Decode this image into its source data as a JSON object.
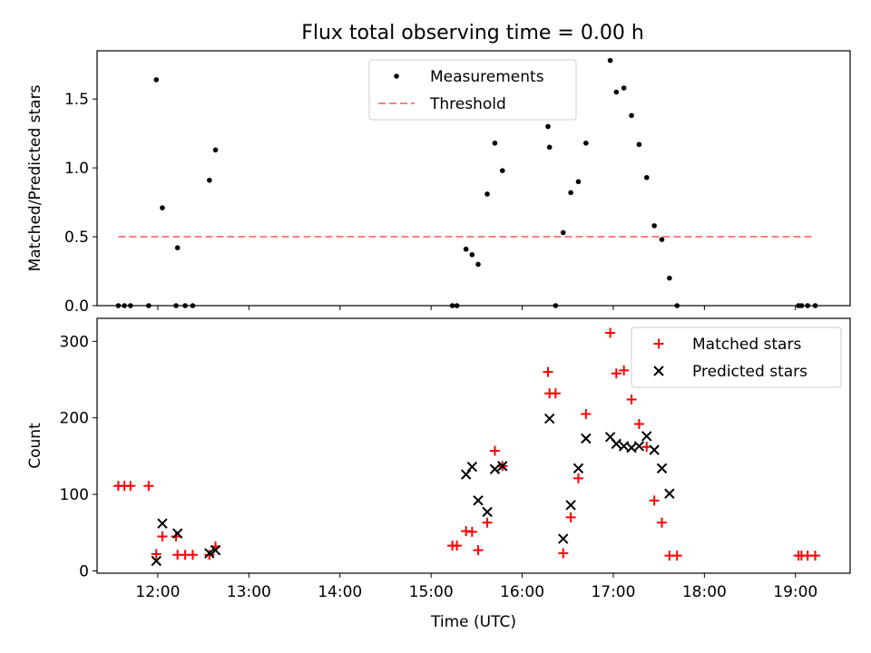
{
  "title": "Flux total observing time = 0.00 h",
  "chart_data": [
    {
      "type": "scatter",
      "title": "Flux total observing time = 0.00 h",
      "xlabel": "",
      "ylabel": "Matched/Predicted stars",
      "xlim": [
        "11:20",
        "19:36"
      ],
      "ylim": [
        0,
        1.85
      ],
      "yticks": [
        0.0,
        0.5,
        1.0,
        1.5
      ],
      "ytick_labels": [
        "0.0",
        "0.5",
        "1.0",
        "1.5"
      ],
      "legend_placement": "upper center",
      "legend": [
        "Measurements",
        "Threshold"
      ],
      "series": [
        {
          "name": "Measurements",
          "marker": "dot",
          "color": "#000000",
          "points": [
            [
              "11:34",
              0.0
            ],
            [
              "11:38",
              0.0
            ],
            [
              "11:42",
              0.0
            ],
            [
              "11:54",
              0.0
            ],
            [
              "11:59",
              1.64
            ],
            [
              "12:03",
              0.71
            ],
            [
              "12:12",
              0.0
            ],
            [
              "12:13",
              0.42
            ],
            [
              "12:18",
              0.0
            ],
            [
              "12:23",
              0.0
            ],
            [
              "12:34",
              0.91
            ],
            [
              "12:38",
              1.13
            ],
            [
              "15:14",
              0.0
            ],
            [
              "15:17",
              0.0
            ],
            [
              "15:23",
              0.41
            ],
            [
              "15:27",
              0.37
            ],
            [
              "15:31",
              0.3
            ],
            [
              "15:37",
              0.81
            ],
            [
              "15:42",
              1.18
            ],
            [
              "15:47",
              0.98
            ],
            [
              "16:17",
              1.3
            ],
            [
              "16:18",
              1.15
            ],
            [
              "16:22",
              0.0
            ],
            [
              "16:27",
              0.53
            ],
            [
              "16:32",
              0.82
            ],
            [
              "16:37",
              0.9
            ],
            [
              "16:42",
              1.18
            ],
            [
              "16:58",
              1.78
            ],
            [
              "17:02",
              1.55
            ],
            [
              "17:07",
              1.58
            ],
            [
              "17:12",
              1.38
            ],
            [
              "17:17",
              1.17
            ],
            [
              "17:22",
              0.93
            ],
            [
              "17:27",
              0.58
            ],
            [
              "17:32",
              0.48
            ],
            [
              "17:37",
              0.2
            ],
            [
              "17:42",
              0.0
            ],
            [
              "19:02",
              0.0
            ],
            [
              "19:04",
              0.0
            ],
            [
              "19:08",
              0.0
            ],
            [
              "19:13",
              0.0
            ]
          ]
        },
        {
          "name": "Threshold",
          "line_style": "dashed",
          "color": "#ff7f7f",
          "points": [
            [
              "11:34",
              0.5
            ],
            [
              "19:13",
              0.5
            ]
          ]
        }
      ]
    },
    {
      "type": "scatter",
      "title": "",
      "xlabel": "Time (UTC)",
      "ylabel": "Count",
      "xlim": [
        "11:20",
        "19:36"
      ],
      "ylim": [
        -3,
        330
      ],
      "yticks": [
        0,
        100,
        200,
        300
      ],
      "ytick_labels": [
        "0",
        "100",
        "200",
        "300"
      ],
      "xticks": [
        "12:00",
        "13:00",
        "14:00",
        "15:00",
        "16:00",
        "17:00",
        "18:00",
        "19:00"
      ],
      "legend_placement": "upper right",
      "legend": [
        "Matched stars",
        "Predicted stars"
      ],
      "series": [
        {
          "name": "Matched stars",
          "marker": "plus",
          "color": "#ff0000",
          "points": [
            [
              "11:34",
              111
            ],
            [
              "11:38",
              111
            ],
            [
              "11:42",
              111
            ],
            [
              "11:54",
              111
            ],
            [
              "11:59",
              22
            ],
            [
              "12:03",
              45
            ],
            [
              "12:12",
              45
            ],
            [
              "12:13",
              21
            ],
            [
              "12:18",
              21
            ],
            [
              "12:23",
              21
            ],
            [
              "12:34",
              21
            ],
            [
              "12:38",
              32
            ],
            [
              "15:14",
              33
            ],
            [
              "15:17",
              33
            ],
            [
              "15:23",
              52
            ],
            [
              "15:27",
              51
            ],
            [
              "15:31",
              27
            ],
            [
              "15:37",
              63
            ],
            [
              "15:42",
              157
            ],
            [
              "15:47",
              137
            ],
            [
              "16:17",
              260
            ],
            [
              "16:18",
              232
            ],
            [
              "16:22",
              232
            ],
            [
              "16:27",
              23
            ],
            [
              "16:32",
              70
            ],
            [
              "16:37",
              121
            ],
            [
              "16:42",
              205
            ],
            [
              "16:58",
              311
            ],
            [
              "17:02",
              258
            ],
            [
              "17:07",
              262
            ],
            [
              "17:12",
              224
            ],
            [
              "17:17",
              192
            ],
            [
              "17:22",
              162
            ],
            [
              "17:27",
              92
            ],
            [
              "17:32",
              63
            ],
            [
              "17:37",
              20
            ],
            [
              "17:42",
              20
            ],
            [
              "19:02",
              20
            ],
            [
              "19:04",
              20
            ],
            [
              "19:08",
              20
            ],
            [
              "19:13",
              20
            ]
          ]
        },
        {
          "name": "Predicted stars",
          "marker": "x",
          "color": "#000000",
          "points": [
            [
              "11:59",
              13
            ],
            [
              "12:03",
              62
            ],
            [
              "12:13",
              49
            ],
            [
              "12:34",
              23
            ],
            [
              "12:38",
              27
            ],
            [
              "15:23",
              126
            ],
            [
              "15:27",
              136
            ],
            [
              "15:31",
              92
            ],
            [
              "15:37",
              77
            ],
            [
              "15:42",
              133
            ],
            [
              "15:47",
              137
            ],
            [
              "16:18",
              199
            ],
            [
              "16:27",
              42
            ],
            [
              "16:32",
              86
            ],
            [
              "16:37",
              134
            ],
            [
              "16:42",
              173
            ],
            [
              "16:58",
              175
            ],
            [
              "17:02",
              166
            ],
            [
              "17:07",
              163
            ],
            [
              "17:12",
              161
            ],
            [
              "17:17",
              163
            ],
            [
              "17:22",
              176
            ],
            [
              "17:27",
              158
            ],
            [
              "17:32",
              134
            ],
            [
              "17:37",
              101
            ]
          ]
        }
      ]
    }
  ]
}
